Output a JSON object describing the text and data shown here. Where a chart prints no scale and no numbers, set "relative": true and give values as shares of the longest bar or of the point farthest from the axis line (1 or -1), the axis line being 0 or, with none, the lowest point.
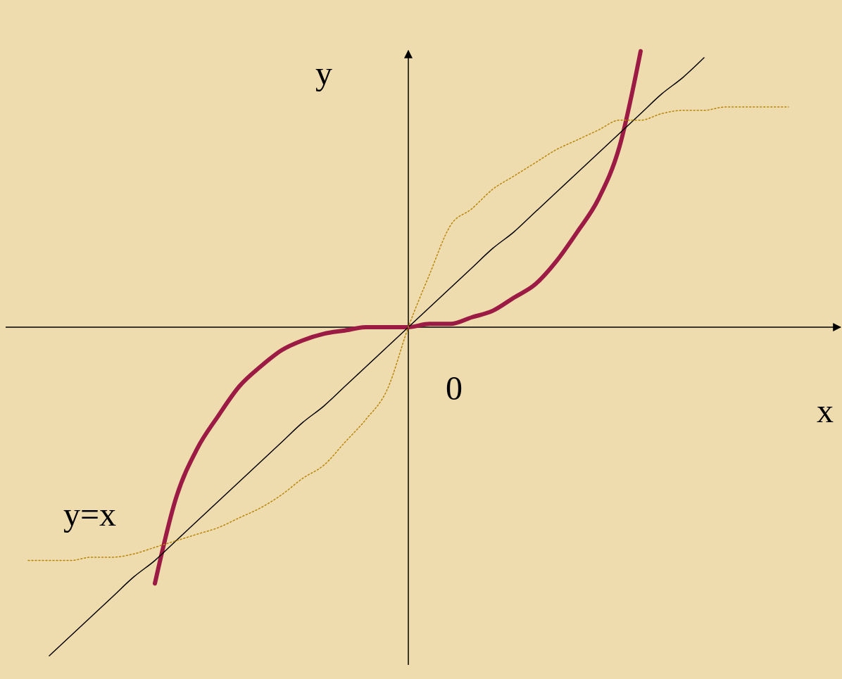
{
  "chart_data": {
    "type": "line",
    "relative": true,
    "xlabel": "x",
    "ylabel": "y",
    "annotations": [
      "0"
    ],
    "categories": [
      null,
      null,
      null,
      null,
      null,
      null,
      null,
      null,
      null,
      null,
      null,
      null,
      null,
      null,
      null,
      null,
      null,
      null,
      null,
      null,
      null,
      null,
      null,
      null,
      null,
      null,
      null,
      null,
      null,
      null,
      null,
      null,
      null,
      null,
      null,
      null,
      null,
      null,
      null,
      null
    ],
    "series": [
      {
        "color": "#9b1b45",
        "values": [
          null,
          null,
          null,
          null,
          null,
          null,
          null,
          -0.78,
          -0.52,
          -0.37,
          -0.27,
          -0.18,
          -0.12,
          -0.07,
          -0.04,
          -0.02,
          -0.01,
          0,
          0,
          0,
          0.01,
          0.01,
          0.03,
          0.05,
          0.09,
          0.13,
          0.2,
          0.29,
          0.39,
          0.55,
          0.84,
          null,
          null,
          null,
          null,
          null,
          null,
          null,
          null,
          null
        ]
      },
      {
        "name": "y=x",
        "color": "#000000",
        "values": [
          null,
          null,
          -1.0,
          -0.94,
          -0.88,
          -0.82,
          -0.76,
          -0.71,
          -0.65,
          -0.59,
          -0.53,
          -0.47,
          -0.41,
          -0.35,
          -0.29,
          -0.24,
          -0.18,
          -0.12,
          -0.06,
          0,
          0.06,
          0.12,
          0.18,
          0.24,
          0.29,
          0.35,
          0.41,
          0.47,
          0.53,
          0.59,
          0.65,
          0.71,
          0.76,
          0.82,
          null,
          null,
          null,
          null,
          null,
          null
        ]
      },
      {
        "color": "#b8860b",
        "line_style": "dotted",
        "values": [
          null,
          -0.71,
          -0.71,
          -0.71,
          -0.7,
          -0.7,
          -0.69,
          -0.67,
          -0.65,
          -0.63,
          -0.61,
          -0.58,
          -0.55,
          -0.51,
          -0.46,
          -0.42,
          -0.35,
          -0.28,
          -0.19,
          0,
          0.16,
          0.31,
          0.36,
          0.42,
          0.46,
          0.5,
          0.54,
          0.57,
          0.6,
          0.63,
          0.63,
          0.65,
          0.66,
          0.66,
          0.67,
          0.67,
          0.67,
          0.67,
          null,
          null
        ]
      }
    ]
  }
}
